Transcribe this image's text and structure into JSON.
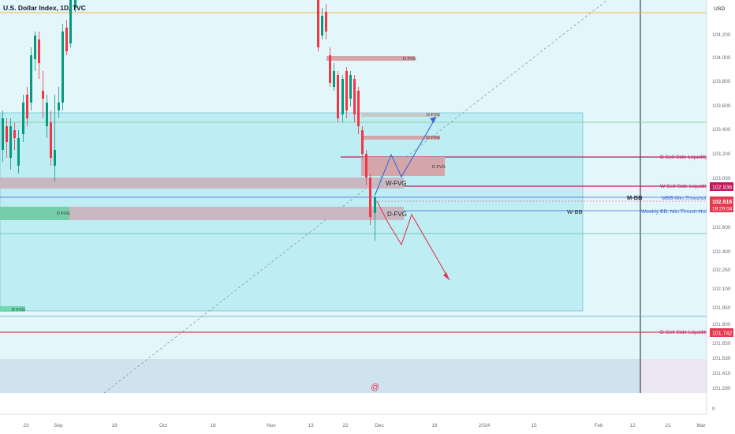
{
  "header": {
    "title": "U.S. Dollar Index, 1D, TVC",
    "currency": "USD"
  },
  "watermark": "@",
  "chart_data": {
    "type": "candlestick",
    "title": "U.S. Dollar Index, 1D, TVC",
    "y_axis": {
      "ticks": [
        "104.200",
        "104.000",
        "103.800",
        "103.600",
        "103.400",
        "103.200",
        "103.000",
        "102.800",
        "102.600",
        "102.400",
        "102.250",
        "102.100",
        "101.950",
        "101.800",
        "101.650",
        "101.530",
        "101.410",
        "101.290",
        "0"
      ]
    },
    "x_axis": {
      "ticks": [
        "23",
        "Sep",
        "18",
        "Oct",
        "16",
        "Nov",
        "13",
        "22",
        "Dec",
        "18",
        "2024",
        "15",
        "Feb",
        "12",
        "21",
        "Mar"
      ]
    },
    "price_labels": [
      {
        "text": "102.936",
        "color": "#c2185b"
      },
      {
        "text": "102.816",
        "color": "#e53950",
        "sub": "19:29:04"
      },
      {
        "text": "101.742",
        "color": "#e53950"
      }
    ],
    "horizontal_lines": [
      {
        "label": "D Sell Side Liquidity",
        "color": "#c2185b"
      },
      {
        "label": "W Sell Side Liquidity",
        "color": "#c2185b"
      },
      {
        "label": "MBB-Min.Threshold",
        "color": "#3a66d6"
      },
      {
        "label": "Weekly BB, Min Thrush Hold",
        "color": "#3a66d6"
      },
      {
        "label": "D-Sell Side Liquidity",
        "color": "#c2185b"
      }
    ],
    "text_labels": [
      "M-BB",
      "W-BB",
      "W-FVG",
      "D-FVG",
      "D FVG"
    ],
    "candles_close_last": 102.816,
    "colors": {
      "up": "#089981",
      "down": "#f23645",
      "zone": "#b2ebf2",
      "fvg": "#d4a6aa"
    }
  }
}
